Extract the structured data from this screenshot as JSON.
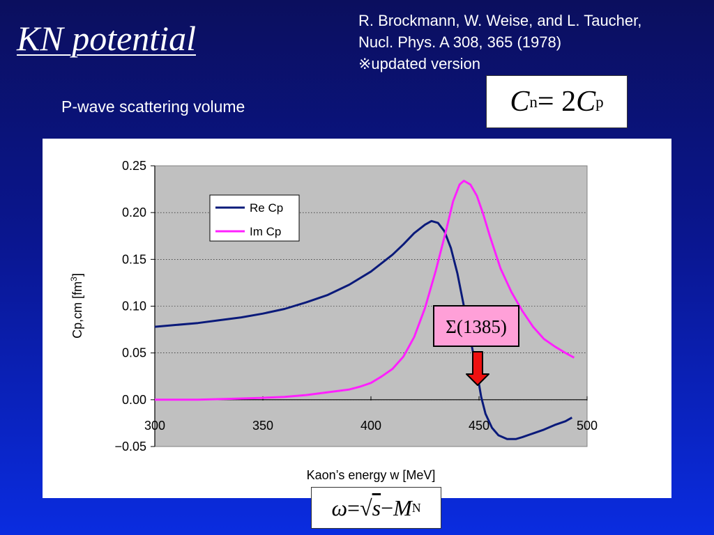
{
  "slide": {
    "title": "KN potential",
    "reference_line1": "R. Brockmann, W. Weise, and L. Taucher,",
    "reference_line2": "Nucl. Phys. A 308, 365 (1978)",
    "reference_line3": "※updated version",
    "subtitle": "P-wave scattering volume",
    "eq_cn": {
      "lhs": "C",
      "lhs_sub": "n",
      "eq": " = 2",
      "rhs": "C",
      "rhs_sub": "p"
    },
    "eq_omega": {
      "omega": "ω",
      "eq": " = ",
      "root": "√",
      "s": "s",
      "minus": " − ",
      "m": "M",
      "m_sub": "N"
    },
    "sigma_label": "Σ(1385)"
  },
  "colors": {
    "re_cp": "#0a1a7a",
    "im_cp": "#ff20ff",
    "plot_bg": "#c0c0c0",
    "sigma_box": "#ffa0d8",
    "arrow": "#ee1111"
  },
  "chart_data": {
    "type": "line",
    "xlabel": "Kaon’s energy w [MeV]",
    "ylabel": "Cp,cm [fm3]",
    "ylabel_main": "Cp,cm [fm",
    "ylabel_sup": "3",
    "ylabel_end": "]",
    "xlim": [
      300,
      500
    ],
    "ylim": [
      -0.05,
      0.25
    ],
    "x_ticks": [
      "300",
      "350",
      "400",
      "450",
      "500"
    ],
    "y_ticks": [
      "0.25",
      "0.20",
      "0.15",
      "0.10",
      "0.05",
      "0.00",
      "−0.05"
    ],
    "grid": true,
    "legend": "top-left",
    "series": [
      {
        "name": "Re Cp",
        "points": [
          [
            300,
            0.078
          ],
          [
            310,
            0.08
          ],
          [
            320,
            0.082
          ],
          [
            330,
            0.085
          ],
          [
            340,
            0.088
          ],
          [
            350,
            0.092
          ],
          [
            360,
            0.097
          ],
          [
            370,
            0.104
          ],
          [
            380,
            0.112
          ],
          [
            390,
            0.123
          ],
          [
            400,
            0.137
          ],
          [
            410,
            0.155
          ],
          [
            415,
            0.166
          ],
          [
            420,
            0.178
          ],
          [
            425,
            0.187
          ],
          [
            428,
            0.191
          ],
          [
            431,
            0.189
          ],
          [
            434,
            0.18
          ],
          [
            437,
            0.162
          ],
          [
            440,
            0.135
          ],
          [
            443,
            0.1
          ],
          [
            446,
            0.065
          ],
          [
            449,
            0.03
          ],
          [
            451,
            0.003
          ],
          [
            453,
            -0.015
          ],
          [
            456,
            -0.03
          ],
          [
            459,
            -0.038
          ],
          [
            463,
            -0.042
          ],
          [
            467,
            -0.042
          ],
          [
            470,
            -0.04
          ],
          [
            475,
            -0.036
          ],
          [
            480,
            -0.032
          ],
          [
            485,
            -0.027
          ],
          [
            490,
            -0.023
          ],
          [
            493,
            -0.019
          ]
        ]
      },
      {
        "name": "Im Cp",
        "points": [
          [
            300,
            0.0
          ],
          [
            320,
            0.0
          ],
          [
            335,
            0.001
          ],
          [
            350,
            0.002
          ],
          [
            360,
            0.003
          ],
          [
            370,
            0.005
          ],
          [
            380,
            0.008
          ],
          [
            390,
            0.011
          ],
          [
            395,
            0.014
          ],
          [
            400,
            0.018
          ],
          [
            405,
            0.025
          ],
          [
            410,
            0.033
          ],
          [
            415,
            0.046
          ],
          [
            420,
            0.067
          ],
          [
            425,
            0.098
          ],
          [
            430,
            0.138
          ],
          [
            435,
            0.183
          ],
          [
            438,
            0.212
          ],
          [
            441,
            0.23
          ],
          [
            443,
            0.234
          ],
          [
            446,
            0.23
          ],
          [
            449,
            0.218
          ],
          [
            452,
            0.198
          ],
          [
            455,
            0.175
          ],
          [
            460,
            0.14
          ],
          [
            465,
            0.115
          ],
          [
            470,
            0.095
          ],
          [
            475,
            0.078
          ],
          [
            480,
            0.065
          ],
          [
            485,
            0.057
          ],
          [
            490,
            0.05
          ],
          [
            494,
            0.045
          ]
        ]
      }
    ]
  }
}
